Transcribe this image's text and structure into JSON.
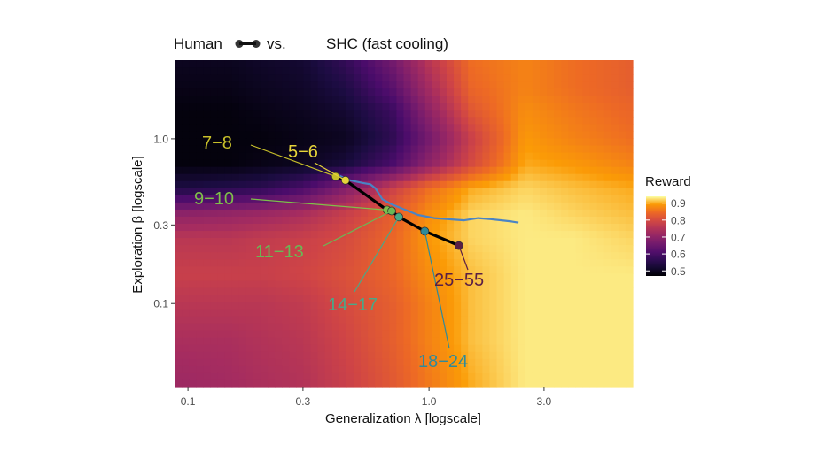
{
  "chart_data": {
    "type": "heatmap",
    "title": {
      "left": "Human",
      "middle": "vs.",
      "right": "SHC (fast cooling)"
    },
    "xlabel": "Generalization λ [logscale]",
    "ylabel": "Exploration β [logscale]",
    "x_scale": "log",
    "y_scale": "log",
    "xlim": [
      0.088,
      7.0
    ],
    "ylim": [
      0.031,
      3.0
    ],
    "x_ticks": [
      {
        "value": 0.1,
        "label": "0.1"
      },
      {
        "value": 0.3,
        "label": "0.3"
      },
      {
        "value": 1.0,
        "label": "1.0"
      },
      {
        "value": 3.0,
        "label": "3.0"
      }
    ],
    "y_ticks": [
      {
        "value": 0.1,
        "label": "0.1"
      },
      {
        "value": 0.3,
        "label": "0.3"
      },
      {
        "value": 1.0,
        "label": "1.0"
      }
    ],
    "legend": {
      "title": "Reward",
      "placement": "right",
      "min": 0.47,
      "max": 0.94,
      "ticks": [
        {
          "value": 0.9,
          "label": "0.9"
        },
        {
          "value": 0.8,
          "label": "0.8"
        },
        {
          "value": 0.7,
          "label": "0.7"
        },
        {
          "value": 0.6,
          "label": "0.6"
        },
        {
          "value": 0.5,
          "label": "0.5"
        }
      ]
    },
    "colors": {
      "heat_low": "#000004",
      "heat_mid": "#b73779",
      "heat_high": "#fcffa4",
      "human_line": "#000000",
      "shc_line": "#4a84c4"
    },
    "human_path": [
      {
        "label": "7−8",
        "x": 0.41,
        "y": 0.59,
        "color": "#c8c02a"
      },
      {
        "label": "5−6",
        "x": 0.45,
        "y": 0.56,
        "color": "#e6d43a"
      },
      {
        "label": "9−10",
        "x": 0.67,
        "y": 0.37,
        "color": "#7fbf4a"
      },
      {
        "label": "11−13",
        "x": 0.7,
        "y": 0.365,
        "color": "#6ab855"
      },
      {
        "label": "14−17",
        "x": 0.75,
        "y": 0.335,
        "color": "#49a888"
      },
      {
        "label": "18−24",
        "x": 0.96,
        "y": 0.275,
        "color": "#2f8a9a"
      },
      {
        "label": "25−55",
        "x": 1.33,
        "y": 0.225,
        "color": "#5a1f45"
      }
    ],
    "shc_path": [
      [
        0.41,
        0.61
      ],
      [
        0.47,
        0.56
      ],
      [
        0.53,
        0.54
      ],
      [
        0.57,
        0.53
      ],
      [
        0.6,
        0.5
      ],
      [
        0.64,
        0.43
      ],
      [
        0.7,
        0.4
      ],
      [
        0.8,
        0.37
      ],
      [
        0.9,
        0.345
      ],
      [
        1.05,
        0.33
      ],
      [
        1.2,
        0.325
      ],
      [
        1.4,
        0.32
      ],
      [
        1.6,
        0.33
      ],
      [
        1.8,
        0.325
      ],
      [
        2.0,
        0.32
      ],
      [
        2.2,
        0.315
      ],
      [
        2.35,
        0.31
      ]
    ],
    "heatmap_reward_grid": {
      "x_values": [
        0.088,
        0.1,
        0.15,
        0.2,
        0.3,
        0.45,
        0.7,
        1.0,
        1.5,
        2.5,
        4.0,
        7.0
      ],
      "y_values": [
        3.0,
        2.0,
        1.5,
        1.0,
        0.7,
        0.5,
        0.35,
        0.25,
        0.15,
        0.1,
        0.06,
        0.031
      ],
      "values": [
        [
          0.5,
          0.5,
          0.5,
          0.51,
          0.52,
          0.57,
          0.66,
          0.76,
          0.85,
          0.87,
          0.85,
          0.83
        ],
        [
          0.49,
          0.49,
          0.49,
          0.5,
          0.51,
          0.54,
          0.62,
          0.73,
          0.84,
          0.87,
          0.85,
          0.83
        ],
        [
          0.48,
          0.48,
          0.48,
          0.49,
          0.5,
          0.52,
          0.58,
          0.7,
          0.82,
          0.88,
          0.86,
          0.84
        ],
        [
          0.48,
          0.48,
          0.48,
          0.48,
          0.49,
          0.5,
          0.56,
          0.66,
          0.78,
          0.89,
          0.87,
          0.85
        ],
        [
          0.48,
          0.48,
          0.48,
          0.49,
          0.5,
          0.53,
          0.6,
          0.7,
          0.8,
          0.9,
          0.89,
          0.87
        ],
        [
          0.54,
          0.54,
          0.55,
          0.56,
          0.6,
          0.68,
          0.78,
          0.85,
          0.9,
          0.92,
          0.91,
          0.9
        ],
        [
          0.7,
          0.7,
          0.71,
          0.72,
          0.74,
          0.78,
          0.83,
          0.88,
          0.92,
          0.93,
          0.92,
          0.91
        ],
        [
          0.76,
          0.76,
          0.76,
          0.77,
          0.78,
          0.8,
          0.84,
          0.89,
          0.92,
          0.93,
          0.93,
          0.92
        ],
        [
          0.78,
          0.78,
          0.78,
          0.78,
          0.79,
          0.81,
          0.84,
          0.88,
          0.91,
          0.93,
          0.93,
          0.93
        ],
        [
          0.76,
          0.76,
          0.76,
          0.76,
          0.77,
          0.8,
          0.83,
          0.87,
          0.91,
          0.93,
          0.93,
          0.93
        ],
        [
          0.74,
          0.74,
          0.74,
          0.75,
          0.76,
          0.79,
          0.83,
          0.87,
          0.91,
          0.93,
          0.93,
          0.93
        ],
        [
          0.72,
          0.72,
          0.73,
          0.74,
          0.75,
          0.78,
          0.82,
          0.86,
          0.9,
          0.93,
          0.93,
          0.93
        ]
      ]
    }
  }
}
